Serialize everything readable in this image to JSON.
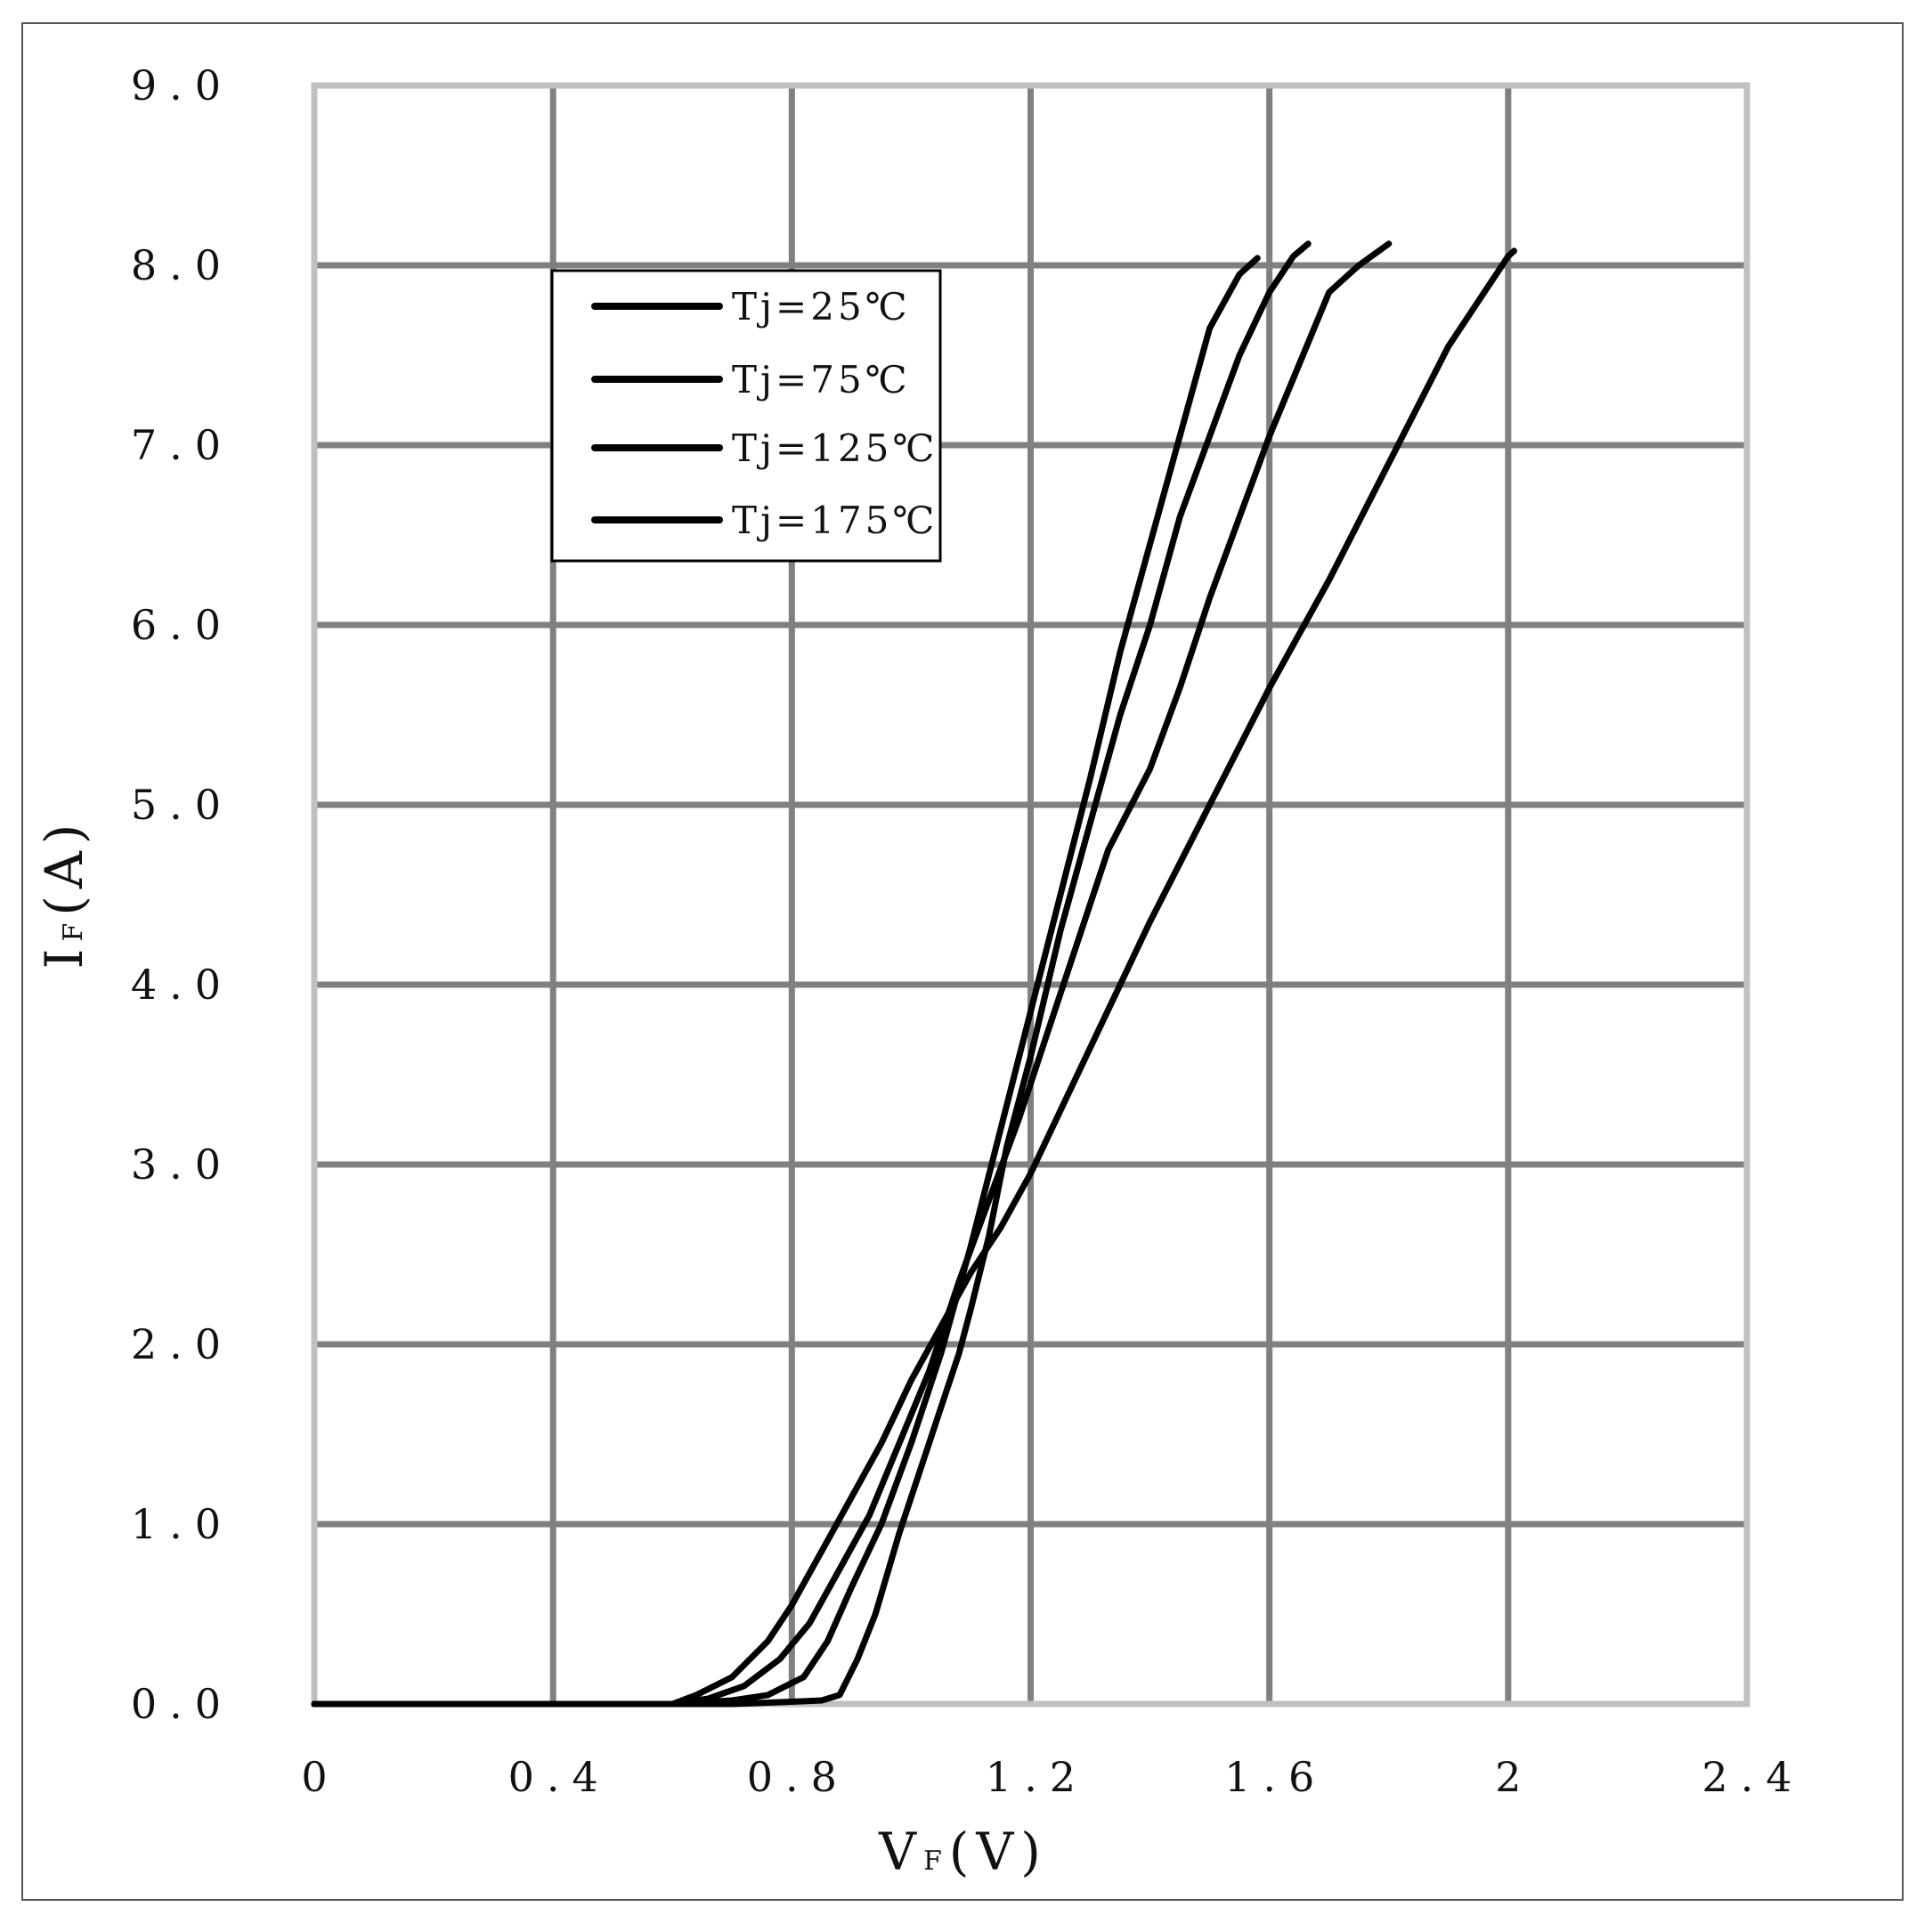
{
  "chart_data": {
    "type": "line",
    "title": "",
    "xlabel": "VF(V)",
    "xlabel_main": "V",
    "xlabel_sub": "F",
    "xlabel_unit": "(V)",
    "ylabel": "IF(A)",
    "ylabel_main": "I",
    "ylabel_sub": "F",
    "ylabel_unit": "(A)",
    "xlim": [
      0,
      2.4
    ],
    "ylim": [
      0,
      9.0
    ],
    "x_ticks": [
      0,
      0.4,
      0.8,
      1.2,
      1.6,
      2.0,
      2.4
    ],
    "x_tick_labels": [
      "0",
      "0.4",
      "0.8",
      "1.2",
      "1.6",
      "2",
      "2.4"
    ],
    "y_ticks": [
      0,
      1,
      2,
      3,
      4,
      5,
      6,
      7,
      8,
      9
    ],
    "y_tick_labels": [
      "0.0",
      "1.0",
      "2.0",
      "3.0",
      "4.0",
      "5.0",
      "6.0",
      "7.0",
      "8.0",
      "9.0"
    ],
    "grid": true,
    "legend_position": "top-left",
    "colors": {
      "line": "#000000",
      "grid": "#808080",
      "frame": "#c0c0c0",
      "border": "#555555"
    },
    "series": [
      {
        "name": "Tj=25℃",
        "x": [
          0,
          0.6,
          0.7,
          0.78,
          0.85,
          0.88,
          0.91,
          0.94,
          0.98,
          1.02,
          1.05,
          1.08,
          1.1,
          1.13,
          1.16,
          1.2,
          1.25,
          1.3,
          1.35,
          1.4,
          1.45,
          1.5,
          1.55,
          1.6,
          1.64,
          1.665
        ],
        "y": [
          0,
          0,
          0,
          0.01,
          0.02,
          0.05,
          0.25,
          0.5,
          0.95,
          1.35,
          1.65,
          1.95,
          2.2,
          2.6,
          3.1,
          3.6,
          4.3,
          4.9,
          5.5,
          6.0,
          6.6,
          7.05,
          7.5,
          7.85,
          8.05,
          8.12
        ]
      },
      {
        "name": "Tj=75℃",
        "x": [
          0,
          0.6,
          0.7,
          0.76,
          0.82,
          0.86,
          0.9,
          0.95,
          1.0,
          1.05,
          1.1,
          1.15,
          1.2,
          1.25,
          1.3,
          1.35,
          1.4,
          1.45,
          1.5,
          1.55,
          1.58
        ],
        "y": [
          0,
          0,
          0.02,
          0.05,
          0.15,
          0.35,
          0.65,
          1.0,
          1.45,
          1.95,
          2.55,
          3.2,
          3.85,
          4.5,
          5.15,
          5.85,
          6.45,
          7.05,
          7.65,
          7.95,
          8.04
        ]
      },
      {
        "name": "Tj=125℃",
        "x": [
          0,
          0.6,
          0.66,
          0.72,
          0.78,
          0.83,
          0.88,
          0.93,
          0.98,
          1.03,
          1.08,
          1.13,
          1.18,
          1.23,
          1.28,
          1.33,
          1.4,
          1.45,
          1.5,
          1.55,
          1.6,
          1.65,
          1.7,
          1.75,
          1.8
        ],
        "y": [
          0,
          0,
          0.03,
          0.1,
          0.25,
          0.45,
          0.75,
          1.05,
          1.45,
          1.85,
          2.35,
          2.8,
          3.25,
          3.75,
          4.25,
          4.75,
          5.2,
          5.65,
          6.15,
          6.6,
          7.05,
          7.45,
          7.85,
          8.0,
          8.12
        ]
      },
      {
        "name": "Tj=175℃",
        "x": [
          0,
          0.6,
          0.64,
          0.7,
          0.76,
          0.8,
          0.85,
          0.9,
          0.95,
          1.0,
          1.05,
          1.1,
          1.15,
          1.2,
          1.25,
          1.3,
          1.35,
          1.4,
          1.5,
          1.6,
          1.7,
          1.8,
          1.9,
          2.0,
          2.01
        ],
        "y": [
          0,
          0,
          0.05,
          0.15,
          0.35,
          0.55,
          0.85,
          1.15,
          1.45,
          1.8,
          2.1,
          2.4,
          2.65,
          2.95,
          3.3,
          3.65,
          4.0,
          4.35,
          5.0,
          5.65,
          6.25,
          6.9,
          7.55,
          8.05,
          8.08
        ]
      }
    ]
  }
}
